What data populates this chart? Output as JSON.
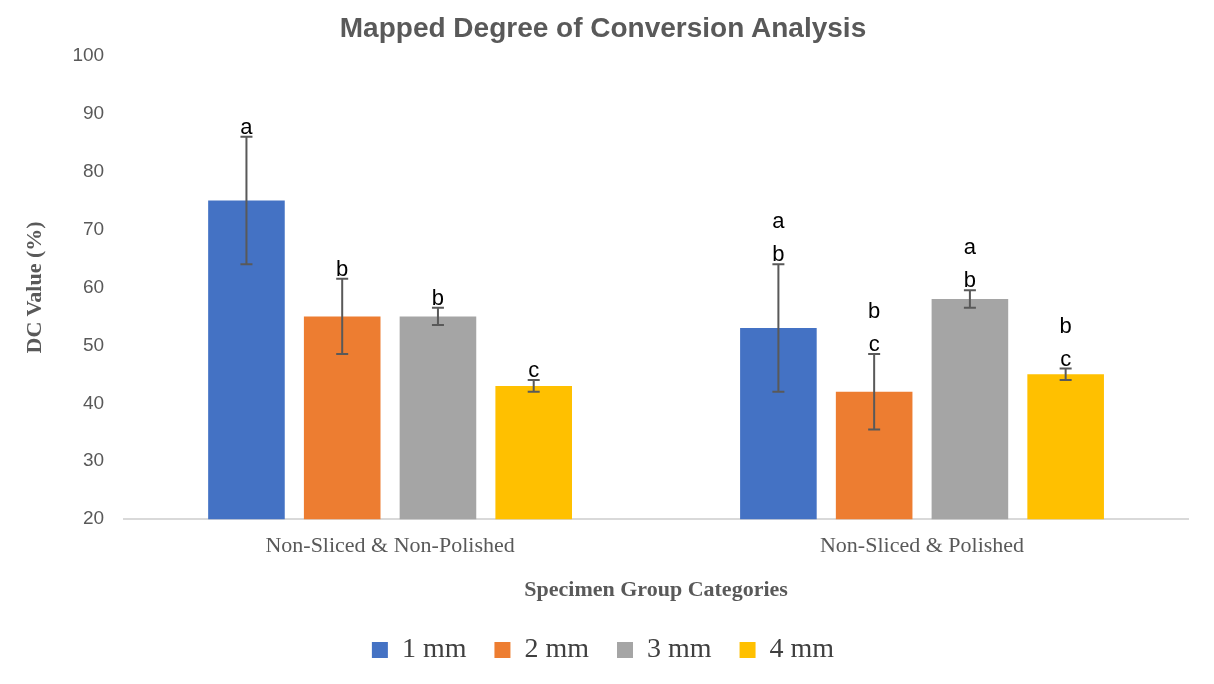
{
  "chart_data": {
    "type": "bar",
    "title": "Mapped Degree of Conversion Analysis",
    "xlabel": "Specimen Group Categories",
    "ylabel": "DC Value (%)",
    "categories": [
      "Non-Sliced & Non-Polished",
      "Non-Sliced & Polished"
    ],
    "series": [
      {
        "name": "1 mm",
        "color": "#4472c4",
        "values": [
          75,
          53
        ],
        "errors": [
          11,
          11
        ],
        "value_labels": [
          "a",
          "a\nb"
        ]
      },
      {
        "name": "2 mm",
        "color": "#ed7d31",
        "values": [
          55,
          42
        ],
        "errors": [
          6.5,
          6.5
        ],
        "value_labels": [
          "b",
          "b\nc"
        ]
      },
      {
        "name": "3 mm",
        "color": "#a5a5a5",
        "values": [
          55,
          58
        ],
        "errors": [
          1.5,
          1.5
        ],
        "value_labels": [
          "b",
          "a\nb"
        ]
      },
      {
        "name": "4 mm",
        "color": "#ffc000",
        "values": [
          43,
          45
        ],
        "errors": [
          1,
          1
        ],
        "value_labels": [
          "c",
          "b\nc"
        ]
      }
    ],
    "ylim": [
      20,
      100
    ],
    "yticks": [
      20,
      30,
      40,
      50,
      60,
      70,
      80,
      90,
      100
    ],
    "grid": false,
    "legend": "bottom"
  }
}
